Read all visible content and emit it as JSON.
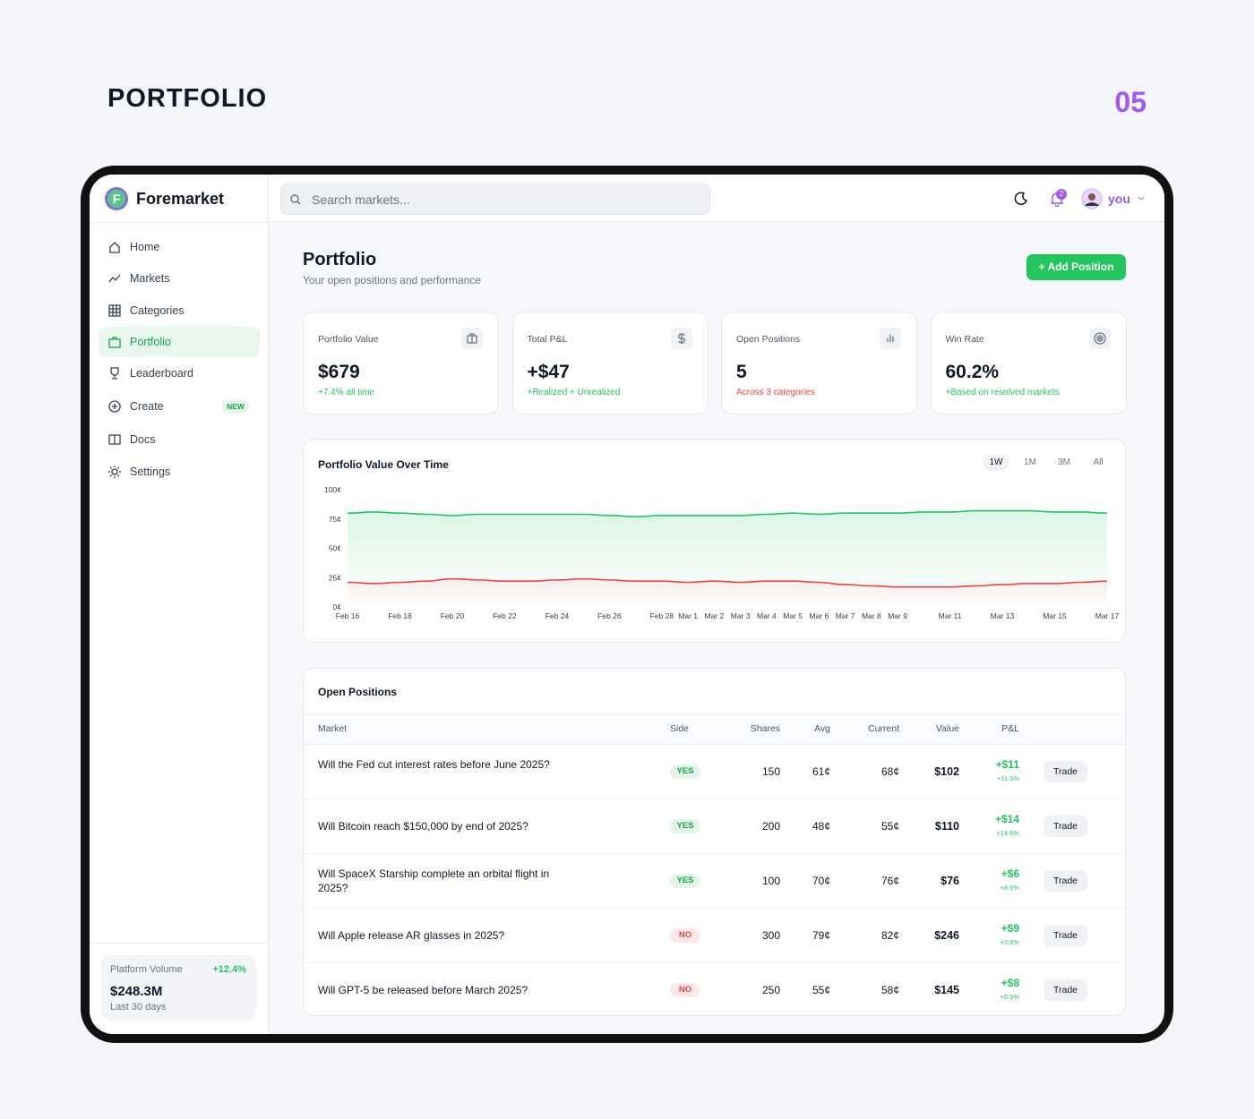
{
  "header": {
    "title": "PORTFOLIO",
    "number": "05"
  },
  "app": {
    "brand": "Foremarket",
    "search_placeholder": "Search markets...",
    "notification_count": "2",
    "user": "you"
  },
  "sidebar": {
    "nav": [
      {
        "label": "Home"
      },
      {
        "label": "Markets"
      },
      {
        "label": "Categories"
      },
      {
        "label": "Portfolio"
      },
      {
        "label": "Leaderboard"
      },
      {
        "label": "Create",
        "badge": "NEW"
      },
      {
        "label": "Docs"
      },
      {
        "label": "Settings"
      }
    ],
    "platform": {
      "label": "Platform Volume",
      "change": "+12.4%",
      "value": "$248.3M",
      "period": "Last 30 days"
    }
  },
  "page": {
    "title": "Portfolio",
    "subtitle": "Your open positions and performance",
    "button": "+ Add Position"
  },
  "stats": [
    {
      "label": "Portfolio Value",
      "value": "$679",
      "note": "+7.4% all time",
      "note_color": "#22c55e"
    },
    {
      "label": "Total P&L",
      "value": "+$47",
      "note": "+Realized + Unrealized",
      "note_color": "#22c55e"
    },
    {
      "label": "Open Positions",
      "value": "5",
      "note": "Across 3 categories",
      "note_color": "#ef4444"
    },
    {
      "label": "Win Rate",
      "value": "60.2%",
      "note": "+Based on resolved markets",
      "note_color": "#22c55e"
    }
  ],
  "chart_data": {
    "type": "line",
    "title": "Portfolio Value Over Time",
    "ranges": [
      "1W",
      "1M",
      "3M",
      "All"
    ],
    "categories": [
      "Feb 16",
      null,
      "Feb 18",
      null,
      "Feb 20",
      null,
      "Feb 22",
      null,
      "Feb 24",
      null,
      "Feb 26",
      null,
      "Feb 28",
      "Mar 1",
      "Mar 2",
      "Mar 3",
      "Mar 4",
      "Mar 5",
      "Mar 6",
      "Mar 7",
      "Mar 8",
      "Mar 9",
      null,
      "Mar 11",
      null,
      "Mar 13",
      null,
      "Mar 15",
      null,
      "Mar 17"
    ],
    "series": [
      {
        "color": "#22c55e",
        "values": [
          80,
          81,
          80,
          79,
          78,
          79,
          79,
          79,
          79,
          79,
          78,
          77,
          78,
          78,
          78,
          78,
          79,
          80,
          79,
          80,
          80,
          80,
          81,
          81,
          82,
          82,
          82,
          81,
          81,
          80
        ]
      },
      {
        "color": "#ef4444",
        "values": [
          21,
          20,
          21,
          22,
          24,
          23,
          22,
          22,
          23,
          24,
          23,
          22,
          22,
          21,
          22,
          21,
          22,
          22,
          21,
          19,
          18,
          17,
          17,
          17,
          18,
          19,
          20,
          20,
          21,
          22
        ]
      }
    ],
    "ylim": [
      0,
      100
    ],
    "yticks": [
      {
        "value": 0,
        "label": "0¢"
      },
      {
        "value": 25,
        "label": "25¢"
      },
      {
        "value": 50,
        "label": "50¢"
      },
      {
        "value": 75,
        "label": "75¢"
      },
      {
        "value": 100,
        "label": "100¢"
      }
    ],
    "grid": false
  },
  "positions": {
    "title": "Open Positions",
    "columns": [
      "Market",
      "Side",
      "Shares",
      "Avg",
      "Current",
      "Value",
      "P&L"
    ],
    "rows": [
      {
        "market": "Will the Fed cut interest rates before June 2025?",
        "side": "YES",
        "side_color": "#16a34a",
        "shares": "150",
        "avg": "61¢",
        "current": "68¢",
        "value": "$102",
        "pnl": "+$11",
        "pnl_pct": "+11.5%",
        "action": "Trade"
      },
      {
        "market": "Will Bitcoin reach $150,000 by end of 2025?",
        "side": "YES",
        "side_color": "#16a34a",
        "shares": "200",
        "avg": "48¢",
        "current": "55¢",
        "value": "$110",
        "pnl": "+$14",
        "pnl_pct": "+14.6%",
        "action": "Trade"
      },
      {
        "market": "Will SpaceX Starship complete an orbital flight in 2025?",
        "side": "YES",
        "side_color": "#16a34a",
        "shares": "100",
        "avg": "70¢",
        "current": "76¢",
        "value": "$76",
        "pnl": "+$6",
        "pnl_pct": "+8.6%",
        "action": "Trade"
      },
      {
        "market": "Will Apple release AR glasses in 2025?",
        "side": "NO",
        "side_color": "#ef4444",
        "shares": "300",
        "avg": "79¢",
        "current": "82¢",
        "value": "$246",
        "pnl": "+$9",
        "pnl_pct": "+3.8%",
        "action": "Trade"
      },
      {
        "market": "Will GPT-5 be released before March 2025?",
        "side": "NO",
        "side_color": "#ef4444",
        "shares": "250",
        "avg": "55¢",
        "current": "58¢",
        "value": "$145",
        "pnl": "+$8",
        "pnl_pct": "+5.5%",
        "action": "Trade"
      }
    ]
  }
}
